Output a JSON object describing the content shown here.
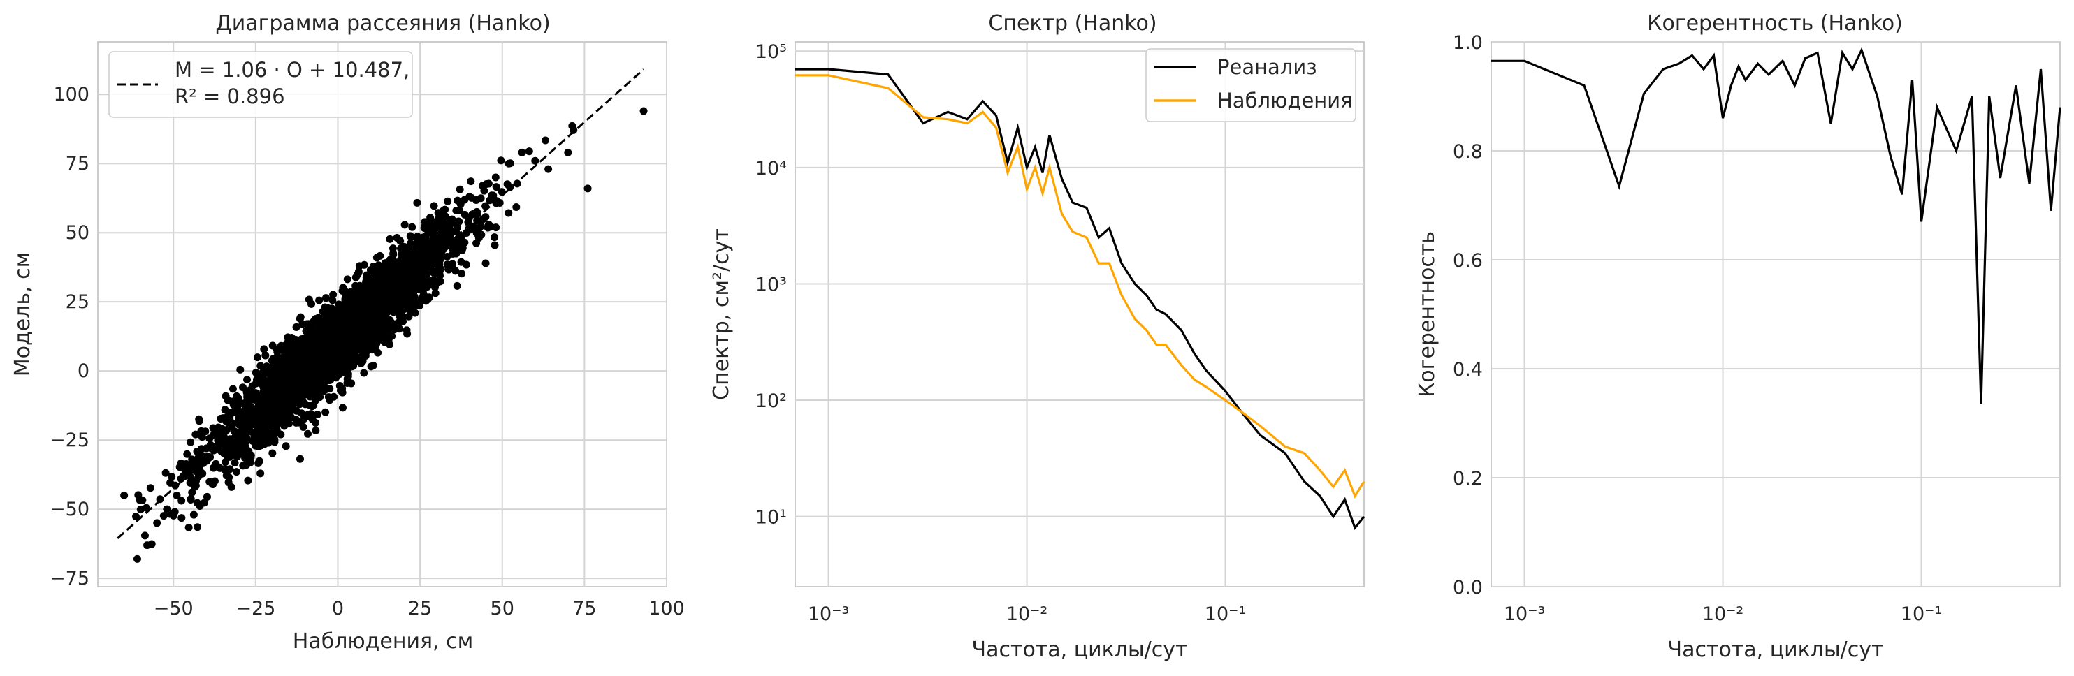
{
  "chart_data": [
    {
      "type": "scatter",
      "title": "Диаграмма рассеяния (Hanko)",
      "xlabel": "Наблюдения, см",
      "ylabel": "Модель, см",
      "xlim": [
        -73,
        100
      ],
      "ylim": [
        -78,
        119
      ],
      "xticks": [
        -50,
        -25,
        0,
        25,
        50,
        75,
        100
      ],
      "xtick_labels": [
        "−50",
        "−25",
        "0",
        "25",
        "50",
        "75",
        "100"
      ],
      "yticks": [
        -75,
        -50,
        -25,
        0,
        25,
        50,
        75,
        100
      ],
      "ytick_labels": [
        "−75",
        "−50",
        "−25",
        "0",
        "25",
        "50",
        "75",
        "100"
      ],
      "grid": true,
      "legend_position": "top-left",
      "legend": [
        "M = 1.06 · O + 10.487,",
        "R² = 0.896"
      ],
      "fit_line": {
        "slope": 1.06,
        "intercept": 10.487,
        "r2": 0.896,
        "x_range": [
          -67,
          93
        ],
        "color": "#000000",
        "style": "dashed"
      },
      "series": [
        {
          "values_description_points": [
            [
              -65,
              -45
            ],
            [
              -61,
              -68
            ],
            [
              -58,
              -63
            ],
            [
              -55,
              -55
            ],
            [
              -52,
              -50
            ],
            [
              -49,
              -45
            ],
            [
              -47,
              -38
            ],
            [
              -44,
              -33
            ],
            [
              -40,
              -28
            ],
            [
              -37,
              -22
            ],
            [
              -34,
              -18
            ],
            [
              -30,
              -12
            ],
            [
              -27,
              -8
            ],
            [
              -23,
              -4
            ],
            [
              -20,
              0
            ],
            [
              -16,
              5
            ],
            [
              -12,
              9
            ],
            [
              -8,
              14
            ],
            [
              -4,
              18
            ],
            [
              0,
              22
            ],
            [
              4,
              26
            ],
            [
              8,
              30
            ],
            [
              12,
              34
            ],
            [
              16,
              38
            ],
            [
              20,
              42
            ],
            [
              24,
              46
            ],
            [
              28,
              50
            ],
            [
              32,
              55
            ],
            [
              36,
              58
            ],
            [
              40,
              63
            ],
            [
              44,
              67
            ],
            [
              48,
              70
            ],
            [
              52,
              75
            ],
            [
              56,
              79
            ],
            [
              60,
              76
            ],
            [
              64,
              73
            ],
            [
              70,
              79
            ],
            [
              76,
              66
            ],
            [
              93,
              94
            ]
          ],
          "color": "#000000"
        }
      ]
    },
    {
      "type": "line",
      "title": "Спектр (Hanko)",
      "xlabel": "Частота, циклы/сут",
      "ylabel": "Спектр, см²/сут",
      "xscale": "log",
      "yscale": "log",
      "xlim": [
        0.00068,
        0.5
      ],
      "ylim": [
        2.5,
        120000
      ],
      "xtick_labels": [
        "10⁻³",
        "10⁻²",
        "10⁻¹"
      ],
      "ytick_labels": [
        "10¹",
        "10²",
        "10³",
        "10⁴",
        "10⁵"
      ],
      "grid": true,
      "legend_position": "top-right",
      "series": [
        {
          "name": "Реанализ",
          "color": "#000000",
          "x": [
            0.00068,
            0.001,
            0.002,
            0.003,
            0.004,
            0.005,
            0.006,
            0.007,
            0.008,
            0.009,
            0.01,
            0.011,
            0.012,
            0.013,
            0.015,
            0.017,
            0.02,
            0.023,
            0.026,
            0.03,
            0.035,
            0.04,
            0.045,
            0.05,
            0.06,
            0.07,
            0.08,
            0.1,
            0.12,
            0.15,
            0.2,
            0.25,
            0.3,
            0.35,
            0.4,
            0.45,
            0.5
          ],
          "values": [
            70000,
            70000,
            63000,
            24000,
            30000,
            26000,
            37000,
            28000,
            11000,
            22000,
            10000,
            15000,
            9000,
            19000,
            8000,
            5000,
            4500,
            2500,
            3000,
            1500,
            1000,
            800,
            600,
            550,
            400,
            250,
            180,
            120,
            80,
            50,
            35,
            20,
            15,
            10,
            14,
            8,
            10
          ]
        },
        {
          "name": "Наблюдения",
          "color": "#FFA500",
          "x": [
            0.00068,
            0.001,
            0.002,
            0.003,
            0.004,
            0.005,
            0.006,
            0.007,
            0.008,
            0.009,
            0.01,
            0.011,
            0.012,
            0.013,
            0.015,
            0.017,
            0.02,
            0.023,
            0.026,
            0.03,
            0.035,
            0.04,
            0.045,
            0.05,
            0.06,
            0.07,
            0.08,
            0.1,
            0.12,
            0.15,
            0.2,
            0.25,
            0.3,
            0.35,
            0.4,
            0.45,
            0.5
          ],
          "values": [
            62000,
            62000,
            48000,
            27000,
            26000,
            24000,
            30000,
            22000,
            9000,
            15000,
            6500,
            10000,
            6000,
            10000,
            4000,
            2800,
            2500,
            1500,
            1500,
            800,
            500,
            400,
            300,
            300,
            200,
            150,
            130,
            100,
            80,
            60,
            40,
            35,
            25,
            18,
            25,
            15,
            20
          ]
        }
      ]
    },
    {
      "type": "line",
      "title": "Когерентность (Hanko)",
      "xlabel": "Частота, циклы/сут",
      "ylabel": "Когерентность",
      "xscale": "log",
      "xlim": [
        0.00068,
        0.5
      ],
      "ylim": [
        0.0,
        1.0
      ],
      "xtick_labels": [
        "10⁻³",
        "10⁻²",
        "10⁻¹"
      ],
      "ytick_labels": [
        "0.0",
        "0.2",
        "0.4",
        "0.6",
        "0.8",
        "1.0"
      ],
      "grid": true,
      "series": [
        {
          "color": "#000000",
          "x": [
            0.00068,
            0.001,
            0.002,
            0.003,
            0.004,
            0.005,
            0.006,
            0.007,
            0.008,
            0.009,
            0.01,
            0.011,
            0.012,
            0.013,
            0.015,
            0.017,
            0.02,
            0.023,
            0.026,
            0.03,
            0.035,
            0.04,
            0.045,
            0.05,
            0.06,
            0.07,
            0.08,
            0.09,
            0.1,
            0.12,
            0.15,
            0.18,
            0.2,
            0.22,
            0.25,
            0.3,
            0.35,
            0.4,
            0.45,
            0.5
          ],
          "values": [
            0.965,
            0.965,
            0.92,
            0.735,
            0.905,
            0.95,
            0.96,
            0.975,
            0.95,
            0.975,
            0.86,
            0.92,
            0.955,
            0.93,
            0.96,
            0.94,
            0.965,
            0.92,
            0.97,
            0.98,
            0.85,
            0.98,
            0.95,
            0.985,
            0.9,
            0.79,
            0.72,
            0.93,
            0.67,
            0.88,
            0.8,
            0.9,
            0.335,
            0.9,
            0.75,
            0.92,
            0.74,
            0.95,
            0.69,
            0.88
          ]
        }
      ]
    }
  ]
}
